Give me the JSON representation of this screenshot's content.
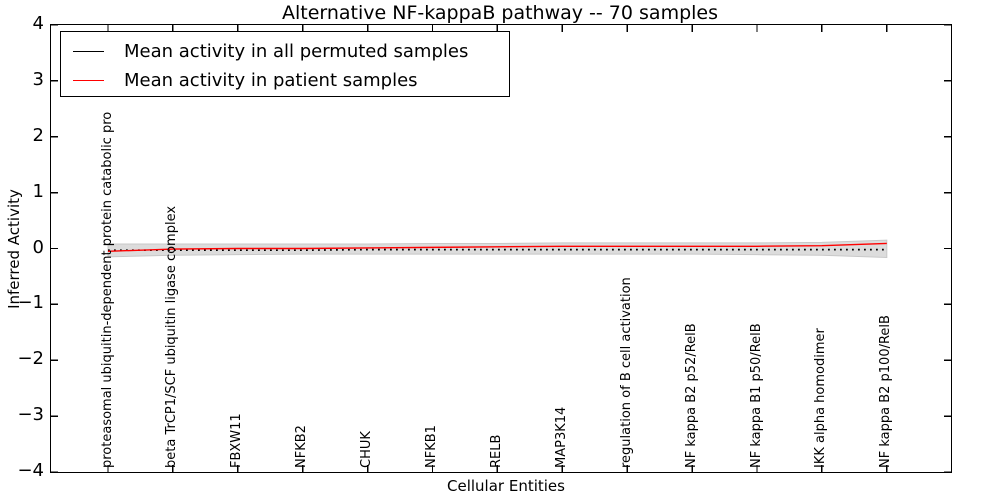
{
  "chart_data": {
    "type": "line",
    "title": "Alternative NF-kappaB pathway -- 70 samples",
    "xlabel": "Cellular Entities",
    "ylabel": "Inferred Activity",
    "ylim": [
      -4,
      4
    ],
    "yticks": [
      4,
      3,
      2,
      1,
      0,
      -1,
      -2,
      -3,
      -4
    ],
    "ytick_labels": [
      "4",
      "3",
      "2",
      "1",
      "0",
      "−1",
      "−2",
      "−3",
      "−4"
    ],
    "grid": false,
    "legend_position": "upper left",
    "categories": [
      "proteasomal ubiquitin-dependent protein catabolic pro",
      "beta TrCP1/SCF ubiquitin ligase complex",
      "FBXW11",
      "NFKB2",
      "CHUK",
      "NFKB1",
      "RELB",
      "MAP3K14",
      "regulation of B cell activation",
      "NF kappa B2 p52/RelB",
      "NF kappa B1 p50/RelB",
      "IKK alpha homodimer",
      "NF kappa B2 p100/RelB"
    ],
    "series": [
      {
        "name": "Mean activity in all permuted samples",
        "color": "#000000",
        "linestyle": "dotted",
        "values": [
          -0.03,
          -0.03,
          -0.03,
          -0.03,
          -0.02,
          -0.02,
          -0.02,
          -0.02,
          -0.02,
          -0.02,
          -0.02,
          -0.02,
          -0.02
        ]
      },
      {
        "name": "Mean activity in patient samples",
        "color": "#ff0000",
        "linestyle": "solid",
        "values": [
          -0.05,
          -0.01,
          0.0,
          0.0,
          0.01,
          0.02,
          0.03,
          0.04,
          0.04,
          0.04,
          0.04,
          0.05,
          0.09
        ]
      }
    ],
    "band": {
      "color": "#dcdcdc",
      "edge_color": "#c8c8c8",
      "upper": [
        0.08,
        0.08,
        0.08,
        0.08,
        0.08,
        0.09,
        0.09,
        0.1,
        0.1,
        0.1,
        0.1,
        0.11,
        0.15
      ],
      "lower": [
        -0.15,
        -0.12,
        -0.11,
        -0.1,
        -0.1,
        -0.1,
        -0.1,
        -0.1,
        -0.1,
        -0.1,
        -0.11,
        -0.12,
        -0.16
      ]
    }
  }
}
